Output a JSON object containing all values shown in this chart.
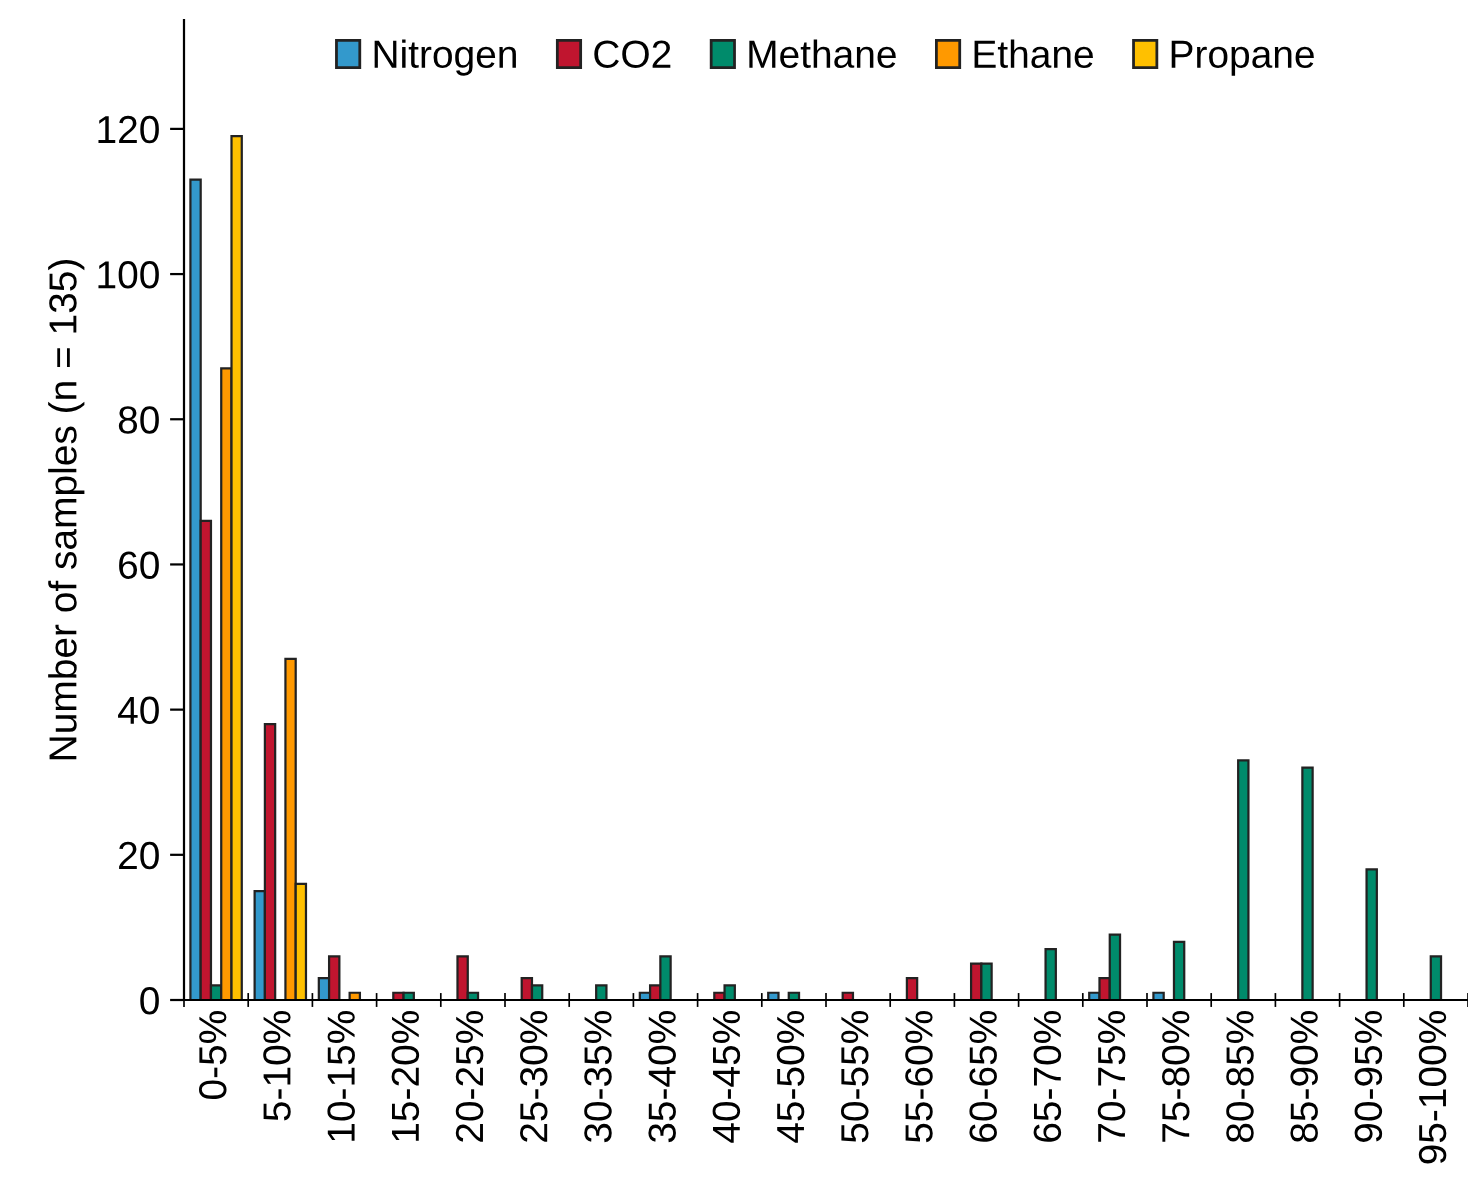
{
  "chart_data": {
    "type": "bar",
    "ylabel": "Number of samples (n = 135)",
    "categories": [
      "0-5%",
      "5-10%",
      "10-15%",
      "15-20%",
      "20-25%",
      "25-30%",
      "30-35%",
      "35-40%",
      "40-45%",
      "45-50%",
      "50-55%",
      "55-60%",
      "60-65%",
      "65-70%",
      "70-75%",
      "75-80%",
      "80-85%",
      "85-90%",
      "90-95%",
      "95-100%"
    ],
    "series": [
      {
        "name": "Nitrogen",
        "color": "#3399cc",
        "values": [
          113,
          15,
          3,
          null,
          null,
          null,
          null,
          1,
          null,
          1,
          null,
          null,
          null,
          null,
          1,
          1,
          null,
          null,
          null,
          null
        ]
      },
      {
        "name": "CO2",
        "color": "#c0152f",
        "values": [
          66,
          38,
          6,
          1,
          6,
          3,
          null,
          2,
          1,
          null,
          1,
          3,
          5,
          null,
          3,
          null,
          null,
          null,
          null,
          null
        ]
      },
      {
        "name": "Methane",
        "color": "#008b6b",
        "values": [
          2,
          null,
          null,
          1,
          1,
          2,
          2,
          6,
          2,
          1,
          null,
          null,
          5,
          7,
          9,
          8,
          33,
          32,
          18,
          6
        ]
      },
      {
        "name": "Ethane",
        "color": "#ff9900",
        "values": [
          87,
          47,
          1,
          null,
          null,
          null,
          null,
          null,
          null,
          null,
          null,
          null,
          null,
          null,
          null,
          null,
          null,
          null,
          null,
          null
        ]
      },
      {
        "name": "Propane",
        "color": "#ffc000",
        "values": [
          119,
          16,
          null,
          null,
          null,
          null,
          null,
          null,
          null,
          null,
          null,
          null,
          null,
          null,
          null,
          null,
          null,
          null,
          null,
          null
        ]
      }
    ],
    "ylim": [
      0,
      135
    ],
    "yticks": [
      0,
      20,
      40,
      60,
      80,
      100,
      120
    ],
    "grid": false,
    "legend": "top"
  }
}
